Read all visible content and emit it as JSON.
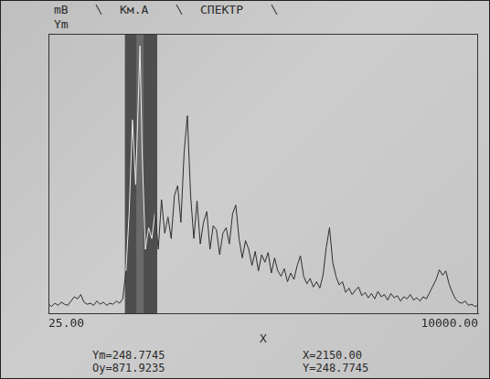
{
  "chart_data": {
    "type": "line",
    "header": [
      "mB",
      "Км.А",
      "СПЕКТР"
    ],
    "y_label": "Ym",
    "x_label": "X",
    "x": [
      25,
      100,
      175,
      250,
      325,
      400,
      475,
      550,
      625,
      700,
      775,
      850,
      925,
      1000,
      1075,
      1150,
      1225,
      1300,
      1375,
      1450,
      1525,
      1600,
      1675,
      1750,
      1825,
      1900,
      1975,
      2050,
      2150,
      2200,
      2275,
      2350,
      2425,
      2500,
      2575,
      2650,
      2725,
      2800,
      2875,
      2950,
      3025,
      3100,
      3175,
      3250,
      3325,
      3400,
      3475,
      3550,
      3625,
      3700,
      3775,
      3850,
      3925,
      4000,
      4075,
      4150,
      4225,
      4300,
      4375,
      4450,
      4525,
      4600,
      4675,
      4750,
      4825,
      4900,
      4975,
      5050,
      5125,
      5200,
      5275,
      5350,
      5425,
      5500,
      5575,
      5650,
      5725,
      5800,
      5875,
      5950,
      6025,
      6100,
      6175,
      6250,
      6325,
      6400,
      6475,
      6550,
      6625,
      6700,
      6775,
      6850,
      6925,
      7000,
      7075,
      7150,
      7225,
      7300,
      7375,
      7450,
      7525,
      7600,
      7675,
      7750,
      7825,
      7900,
      7975,
      8050,
      8125,
      8200,
      8275,
      8350,
      8425,
      8500,
      8575,
      8650,
      8725,
      8800,
      8875,
      8950,
      9025,
      9100,
      9175,
      9250,
      9325,
      9400,
      9475,
      9550,
      9625,
      9700,
      9775,
      9850,
      9925,
      10000
    ],
    "values": [
      9,
      7,
      10,
      8,
      11,
      9,
      8,
      12,
      16,
      14,
      18,
      11,
      9,
      10,
      8,
      12,
      9,
      11,
      8,
      10,
      9,
      12,
      10,
      14,
      40,
      95,
      180,
      120,
      248.7745,
      150,
      60,
      80,
      70,
      95,
      60,
      106,
      75,
      90,
      70,
      110,
      119,
      85,
      150,
      184,
      110,
      70,
      105,
      65,
      85,
      95,
      60,
      82,
      78,
      55,
      75,
      80,
      65,
      93,
      101,
      70,
      52,
      68,
      60,
      45,
      58,
      40,
      55,
      48,
      57,
      38,
      52,
      40,
      35,
      42,
      30,
      38,
      32,
      45,
      54,
      35,
      28,
      33,
      25,
      30,
      24,
      36,
      62,
      80,
      48,
      35,
      27,
      30,
      20,
      24,
      18,
      22,
      25,
      17,
      20,
      15,
      19,
      14,
      21,
      16,
      18,
      13,
      19,
      15,
      17,
      12,
      16,
      14,
      18,
      13,
      15,
      12,
      16,
      14,
      20,
      26,
      32,
      41,
      36,
      40,
      28,
      20,
      14,
      11,
      10,
      12,
      8,
      9,
      7,
      8
    ],
    "color": "#2e2e2e",
    "xlim": [
      25,
      10000
    ],
    "xticks": [
      {
        "value": 25,
        "label": "25.00"
      },
      {
        "value": 10000,
        "label": "10000.00"
      }
    ],
    "ylim": [
      0,
      260
    ],
    "tick_labels": "x",
    "grid": false,
    "cursor": {
      "x": 2150,
      "band": [
        1800,
        2550
      ]
    },
    "readouts": [
      [
        "Ym=248.7745",
        "X=2150.00"
      ],
      [
        "Oy=871.9235",
        "Y=248.7745"
      ]
    ]
  }
}
